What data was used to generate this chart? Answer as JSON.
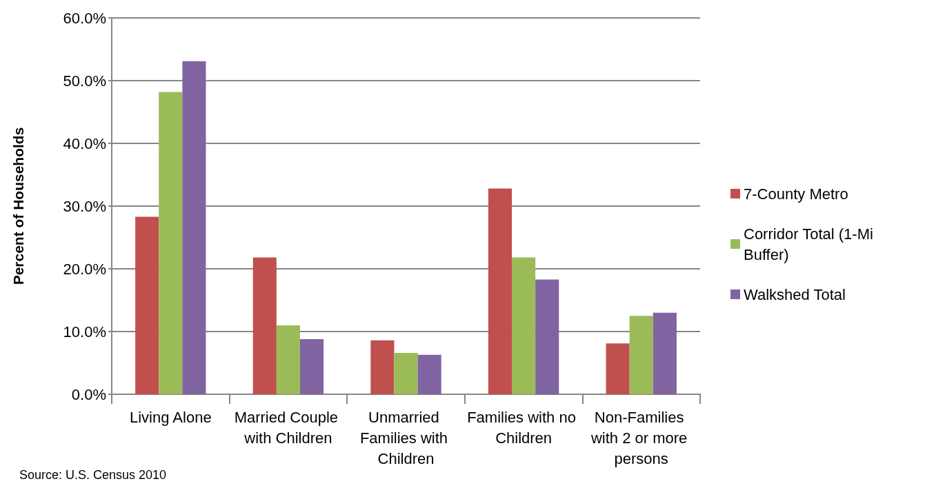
{
  "chart_data": {
    "type": "bar",
    "ylabel": "Percent of Households",
    "categories": [
      "Living Alone",
      "Married Couple with Children",
      "Unmarried Families with Children",
      "Families with no Children",
      "Non-Families with 2 or more persons"
    ],
    "series": [
      {
        "name": "7-County Metro",
        "color": "#c0504d",
        "values": [
          28.3,
          21.8,
          8.6,
          32.8,
          8.1
        ]
      },
      {
        "name": "Corridor Total (1-Mi Buffer)",
        "color": "#9bbb59",
        "values": [
          48.2,
          11.0,
          6.6,
          21.8,
          12.5
        ]
      },
      {
        "name": "Walkshed Total",
        "color": "#8064a2",
        "values": [
          53.1,
          8.8,
          6.3,
          18.3,
          13.0
        ]
      }
    ],
    "ylim": [
      0,
      60
    ],
    "yticks": [
      {
        "value": 0,
        "label": "0.0%"
      },
      {
        "value": 10,
        "label": "10.0%"
      },
      {
        "value": 20,
        "label": "20.0%"
      },
      {
        "value": 30,
        "label": "30.0%"
      },
      {
        "value": 40,
        "label": "40.0%"
      },
      {
        "value": 50,
        "label": "50.0%"
      },
      {
        "value": 60,
        "label": "60.0%"
      }
    ],
    "grid": "y",
    "legend": "right",
    "annotations": [
      "Source: U.S. Census 2010"
    ]
  }
}
